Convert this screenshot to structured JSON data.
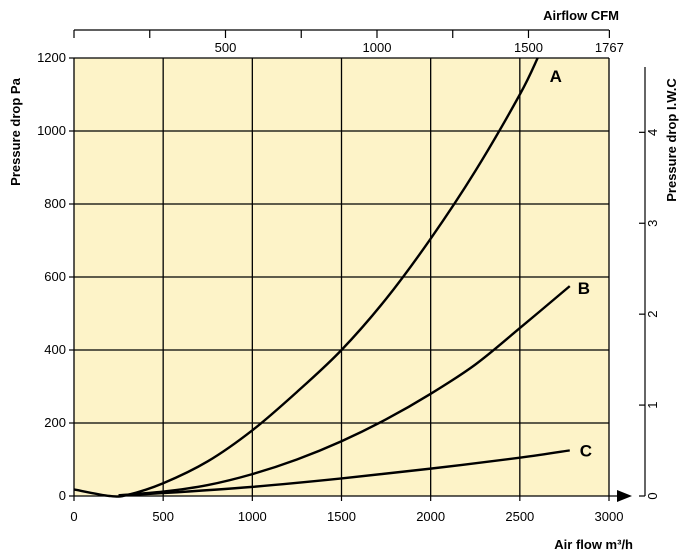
{
  "chart_data": {
    "type": "line",
    "title": "",
    "xlabel": "Air flow m³/h",
    "ylabel": "Pressure drop Pa",
    "x2label": "Airflow CFM",
    "y2label": "Pressure drop I.W.C",
    "xlim": [
      0,
      3000
    ],
    "ylim": [
      0,
      1200
    ],
    "x_ticks": [
      0,
      500,
      1000,
      1500,
      2000,
      2500,
      3000
    ],
    "y_ticks": [
      0,
      200,
      400,
      600,
      800,
      1000,
      1200
    ],
    "x2_ticks": [
      "500",
      "1000",
      "1500",
      "1767"
    ],
    "y2_ticks": [
      "0",
      "1",
      "2",
      "3",
      "4"
    ],
    "grid": true,
    "background": "#fdf3c8",
    "line_color": "#000000",
    "series": [
      {
        "name": "A",
        "x": [
          0,
          200,
          300,
          500,
          750,
          1000,
          1250,
          1500,
          1750,
          2000,
          2250,
          2500,
          2600
        ],
        "y": [
          18,
          0,
          3,
          35,
          95,
          180,
          285,
          400,
          540,
          705,
          890,
          1100,
          1200
        ]
      },
      {
        "name": "B",
        "x": [
          250,
          500,
          750,
          1000,
          1250,
          1500,
          1750,
          2000,
          2250,
          2500,
          2780
        ],
        "y": [
          2,
          12,
          30,
          60,
          100,
          150,
          210,
          280,
          360,
          460,
          575
        ]
      },
      {
        "name": "C",
        "x": [
          250,
          500,
          1000,
          1500,
          2000,
          2500,
          2780
        ],
        "y": [
          2,
          8,
          25,
          48,
          75,
          105,
          125
        ]
      }
    ]
  }
}
